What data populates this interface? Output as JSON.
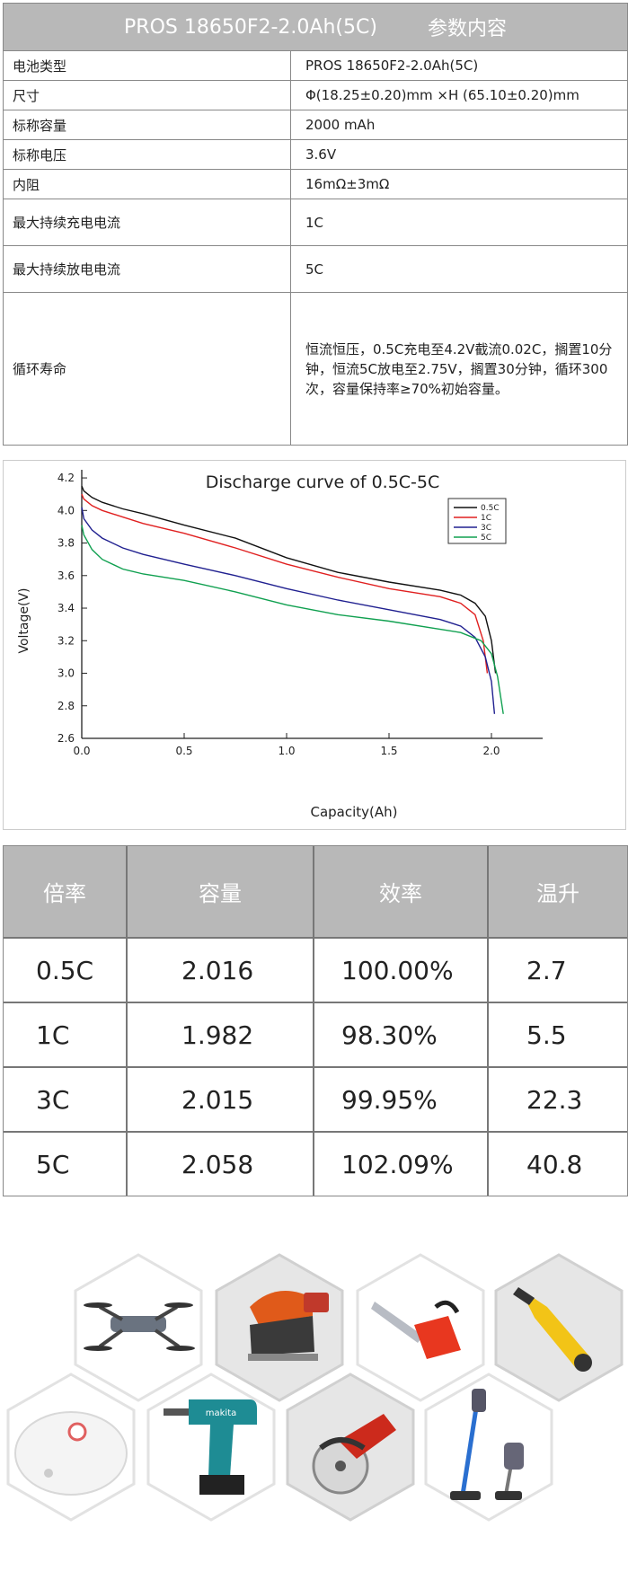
{
  "spec": {
    "title_model": "PROS 18650F2-2.0Ah(5C)",
    "title_suffix": "参数内容",
    "rows": [
      {
        "key": "电池类型",
        "value": "PROS 18650F2-2.0Ah(5C)"
      },
      {
        "key": "尺寸",
        "value": "Φ(18.25±0.20)mm ×H (65.10±0.20)mm"
      },
      {
        "key": "标称容量",
        "value": "2000 mAh"
      },
      {
        "key": "标称电压",
        "value": "3.6V"
      },
      {
        "key": "内阻",
        "value": "16mΩ±3mΩ"
      },
      {
        "key": "最大持续充电电流",
        "value": "1C"
      },
      {
        "key": "最大持续放电电流",
        "value": "5C"
      },
      {
        "key": "循环寿命",
        "value": "恒流恒压，0.5C充电至4.2V截流0.02C，搁置10分钟，恒流5C放电至2.75V，搁置30分钟，循环300次，容量保持率≥70%初始容量。"
      }
    ]
  },
  "chart_data": {
    "type": "line",
    "title": "Discharge curve of 0.5C-5C",
    "xlabel": "Capacity(Ah)",
    "ylabel": "Voltage(V)",
    "xlim": [
      0,
      2.25
    ],
    "ylim": [
      2.6,
      4.25
    ],
    "xticks": [
      "0.0",
      "0.5",
      "1.0",
      "1.5",
      "2.0"
    ],
    "yticks": [
      "2.6",
      "2.8",
      "3.0",
      "3.2",
      "3.4",
      "3.6",
      "3.8",
      "4.0",
      "4.2"
    ],
    "legend_position": "top-right",
    "series": [
      {
        "name": "0.5C",
        "color": "#111111",
        "x": [
          0,
          0.01,
          0.05,
          0.1,
          0.2,
          0.3,
          0.5,
          0.75,
          1.0,
          1.25,
          1.5,
          1.75,
          1.85,
          1.92,
          1.97,
          2.0,
          2.015,
          2.02
        ],
        "y": [
          4.15,
          4.12,
          4.08,
          4.05,
          4.01,
          3.98,
          3.91,
          3.83,
          3.71,
          3.62,
          3.56,
          3.51,
          3.48,
          3.43,
          3.35,
          3.2,
          3.05,
          3.0
        ]
      },
      {
        "name": "1C",
        "color": "#e02020",
        "x": [
          0,
          0.01,
          0.05,
          0.1,
          0.2,
          0.3,
          0.5,
          0.75,
          1.0,
          1.25,
          1.5,
          1.75,
          1.85,
          1.92,
          1.96,
          1.98
        ],
        "y": [
          4.1,
          4.07,
          4.03,
          4.0,
          3.96,
          3.92,
          3.86,
          3.77,
          3.67,
          3.59,
          3.52,
          3.47,
          3.43,
          3.36,
          3.2,
          3.0
        ]
      },
      {
        "name": "3C",
        "color": "#202090",
        "x": [
          0,
          0.01,
          0.05,
          0.1,
          0.2,
          0.3,
          0.5,
          0.75,
          1.0,
          1.25,
          1.5,
          1.75,
          1.85,
          1.92,
          1.97,
          2.0,
          2.015
        ],
        "y": [
          4.02,
          3.95,
          3.88,
          3.83,
          3.77,
          3.73,
          3.67,
          3.6,
          3.52,
          3.45,
          3.39,
          3.33,
          3.29,
          3.22,
          3.1,
          2.95,
          2.75
        ]
      },
      {
        "name": "5C",
        "color": "#10a050",
        "x": [
          0,
          0.01,
          0.05,
          0.1,
          0.2,
          0.3,
          0.5,
          0.75,
          1.0,
          1.25,
          1.5,
          1.75,
          1.85,
          1.95,
          2.0,
          2.03,
          2.058
        ],
        "y": [
          3.91,
          3.85,
          3.76,
          3.7,
          3.64,
          3.61,
          3.57,
          3.5,
          3.42,
          3.36,
          3.32,
          3.27,
          3.25,
          3.2,
          3.12,
          2.98,
          2.75
        ]
      }
    ]
  },
  "rates": {
    "headers": [
      "倍率",
      "容量",
      "效率",
      "温升"
    ],
    "rows": [
      [
        "0.5C",
        "2.016",
        "100.00%",
        "2.7"
      ],
      [
        "1C",
        "1.982",
        "98.30%",
        "5.5"
      ],
      [
        "3C",
        "2.015",
        "99.95%",
        "22.3"
      ],
      [
        "5C",
        "2.058",
        "102.09%",
        "40.8"
      ]
    ]
  },
  "tools": [
    {
      "name": "drone"
    },
    {
      "name": "jigsaw"
    },
    {
      "name": "chainsaw"
    },
    {
      "name": "cable-cutter"
    },
    {
      "name": "robot-vacuum"
    },
    {
      "name": "cordless-drill",
      "brand": "makita"
    },
    {
      "name": "circular-saw"
    },
    {
      "name": "stick-vacuum"
    }
  ]
}
